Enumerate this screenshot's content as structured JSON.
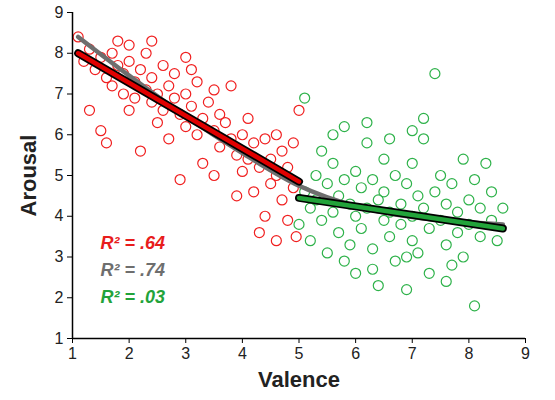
{
  "chart_data": {
    "type": "scatter",
    "xlabel": "Valence",
    "ylabel": "Arousal",
    "xlim": [
      1,
      9
    ],
    "ylim": [
      1,
      9
    ],
    "xticks": [
      1,
      2,
      3,
      4,
      5,
      6,
      7,
      8,
      9
    ],
    "yticks": [
      1,
      2,
      3,
      4,
      5,
      6,
      7,
      8,
      9
    ],
    "grid": false,
    "series": [
      {
        "type": "scatter",
        "marker": "circle",
        "color": "#f02020",
        "x": [
          1.1,
          1.2,
          1.3,
          1.4,
          1.5,
          1.5,
          1.6,
          1.6,
          1.7,
          1.7,
          1.8,
          1.8,
          1.9,
          1.9,
          2.0,
          2.0,
          2.0,
          2.1,
          2.1,
          2.2,
          2.2,
          2.3,
          2.3,
          2.4,
          2.4,
          2.5,
          2.5,
          2.6,
          2.6,
          2.7,
          2.7,
          2.8,
          2.8,
          2.9,
          3.0,
          3.0,
          3.0,
          3.1,
          3.2,
          3.2,
          3.3,
          3.3,
          3.4,
          3.5,
          3.5,
          3.6,
          3.6,
          3.7,
          3.8,
          3.8,
          3.9,
          4.0,
          4.0,
          4.1,
          4.1,
          4.2,
          4.2,
          4.3,
          4.4,
          4.4,
          4.5,
          4.5,
          4.6,
          4.6,
          4.7,
          4.7,
          4.8,
          4.8,
          4.9,
          4.9,
          4.95,
          5.0,
          3.5,
          2.9,
          3.9,
          4.3,
          1.3,
          2.4,
          3.1,
          4.6
        ],
        "values": [
          8.4,
          7.8,
          8.1,
          7.6,
          7.9,
          6.1,
          7.4,
          5.8,
          8.0,
          7.2,
          7.7,
          8.3,
          7.0,
          7.5,
          7.8,
          6.6,
          8.2,
          7.3,
          6.9,
          7.6,
          5.6,
          7.1,
          8.0,
          6.8,
          7.4,
          7.0,
          6.3,
          7.7,
          6.6,
          7.2,
          5.9,
          6.9,
          7.5,
          6.5,
          7.0,
          6.2,
          7.9,
          6.7,
          6.0,
          7.3,
          6.4,
          5.3,
          6.8,
          6.1,
          7.1,
          5.7,
          6.5,
          6.3,
          5.9,
          7.2,
          5.5,
          6.0,
          5.1,
          6.4,
          5.4,
          5.8,
          4.6,
          5.2,
          5.9,
          4.0,
          5.4,
          4.8,
          5.0,
          6.0,
          4.4,
          5.6,
          3.9,
          5.2,
          4.7,
          5.8,
          3.5,
          6.6,
          5.0,
          4.9,
          4.5,
          3.6,
          6.6,
          8.3,
          7.6,
          3.4
        ]
      },
      {
        "type": "scatter",
        "marker": "circle",
        "color": "#2eb24a",
        "x": [
          5.0,
          5.1,
          5.1,
          5.2,
          5.2,
          5.3,
          5.3,
          5.4,
          5.4,
          5.5,
          5.5,
          5.6,
          5.6,
          5.7,
          5.7,
          5.8,
          5.8,
          5.9,
          5.9,
          6.0,
          6.0,
          6.0,
          6.1,
          6.1,
          6.2,
          6.2,
          6.3,
          6.3,
          6.4,
          6.4,
          6.5,
          6.5,
          6.5,
          6.6,
          6.6,
          6.7,
          6.7,
          6.8,
          6.8,
          6.9,
          6.9,
          7.0,
          7.0,
          7.0,
          7.1,
          7.1,
          7.2,
          7.2,
          7.3,
          7.3,
          7.4,
          7.4,
          7.5,
          7.5,
          7.6,
          7.6,
          7.7,
          7.7,
          7.8,
          7.8,
          7.9,
          7.9,
          8.0,
          8.0,
          8.1,
          8.1,
          8.2,
          8.2,
          8.3,
          8.4,
          8.5,
          8.6,
          6.2,
          6.6,
          7.2,
          5.6,
          6.9,
          7.6,
          6.3,
          5.8,
          7.0,
          8.4
        ],
        "values": [
          3.8,
          4.6,
          6.9,
          4.2,
          3.4,
          5.0,
          4.4,
          3.9,
          5.6,
          4.8,
          3.1,
          4.1,
          5.3,
          4.5,
          3.6,
          6.2,
          4.9,
          3.3,
          4.3,
          5.1,
          4.0,
          2.6,
          4.7,
          3.7,
          5.8,
          4.2,
          3.2,
          4.9,
          4.4,
          2.3,
          3.9,
          5.4,
          4.6,
          3.5,
          4.1,
          5.0,
          2.9,
          4.3,
          3.8,
          4.8,
          2.2,
          4.0,
          5.3,
          3.4,
          4.5,
          3.1,
          4.2,
          5.9,
          3.7,
          2.6,
          4.6,
          7.5,
          3.9,
          5.0,
          3.3,
          4.3,
          2.8,
          4.8,
          3.6,
          4.1,
          5.4,
          3.0,
          4.4,
          3.8,
          1.8,
          4.9,
          3.5,
          4.2,
          5.3,
          3.9,
          3.4,
          4.2,
          6.3,
          5.9,
          6.4,
          6.0,
          3.0,
          2.4,
          2.7,
          2.9,
          6.1,
          4.6
        ]
      },
      {
        "type": "line",
        "line_style": "solid",
        "color": "#6e6e6e",
        "x": [
          1.1,
          2,
          3,
          4,
          5,
          6,
          7,
          8,
          8.6
        ],
        "values": [
          8.4,
          7.45,
          6.45,
          5.55,
          4.75,
          4.25,
          3.98,
          3.85,
          3.8
        ]
      },
      {
        "type": "line",
        "line_style": "outlined",
        "color": "#e00000",
        "x": [
          1.1,
          5.0
        ],
        "values": [
          8.0,
          4.85
        ]
      },
      {
        "type": "line",
        "line_style": "outlined",
        "color": "#22a33a",
        "x": [
          5.0,
          8.6
        ],
        "values": [
          4.45,
          3.7
        ]
      }
    ],
    "annotations": [
      {
        "text": "R² = .64",
        "color": "#e81c1c"
      },
      {
        "text": "R² = .74",
        "color": "#6e6e6e"
      },
      {
        "text": "R² = .03",
        "color": "#22a33a"
      }
    ]
  }
}
